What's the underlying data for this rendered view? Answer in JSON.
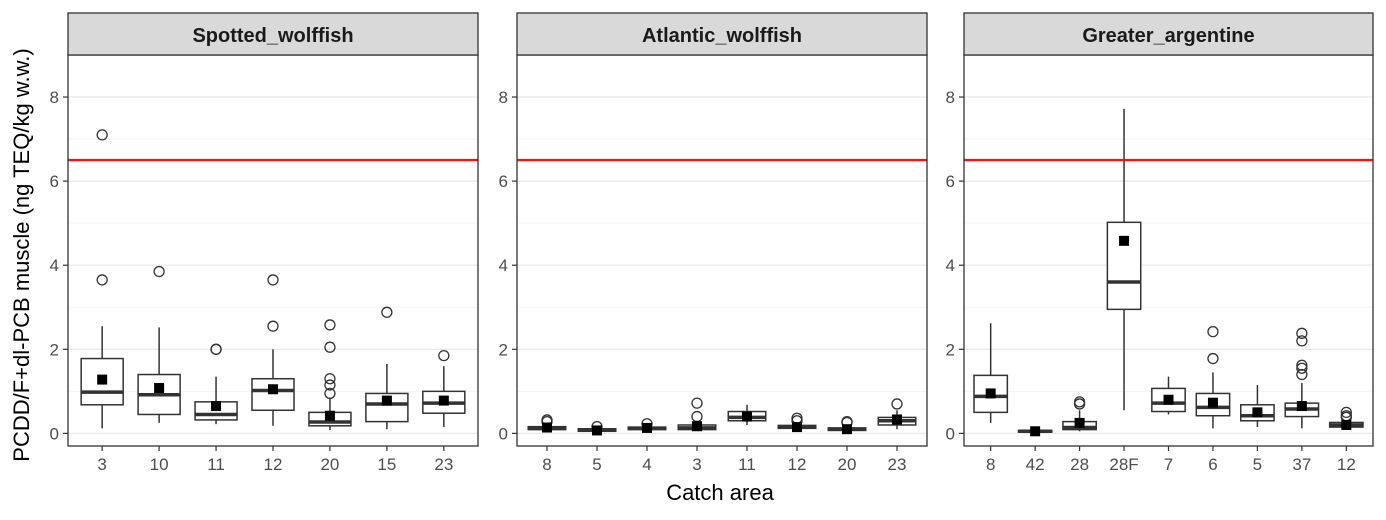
{
  "chart_data": {
    "type": "boxplot",
    "ylabel": "PCDD/F+dl-PCB muscle (ng TEQ/kg w.w.)",
    "xlabel": "Catch area",
    "ylim": [
      -0.3,
      9.0
    ],
    "yticks": [
      0,
      2,
      4,
      6,
      8
    ],
    "reference_line": {
      "y": 6.5,
      "color": "#e31a1c"
    },
    "grid": true,
    "colors": {
      "strip_fill": "#d9d9d9",
      "panel_border": "#333333",
      "grid": "#ebebeb",
      "box": "#333333",
      "mean_marker": "#000000"
    },
    "panels": [
      {
        "title": "Spotted_wolffish",
        "categories": [
          "3",
          "10",
          "11",
          "12",
          "20",
          "15",
          "23"
        ],
        "boxes": [
          {
            "whisker_low": 0.12,
            "q1": 0.68,
            "median": 0.98,
            "q3": 1.78,
            "whisker_high": 2.55,
            "mean": 1.28,
            "outliers": [
              3.65,
              7.1
            ]
          },
          {
            "whisker_low": 0.25,
            "q1": 0.45,
            "median": 0.92,
            "q3": 1.4,
            "whisker_high": 2.52,
            "mean": 1.08,
            "outliers": [
              3.85
            ]
          },
          {
            "whisker_low": 0.22,
            "q1": 0.32,
            "median": 0.45,
            "q3": 0.75,
            "whisker_high": 1.35,
            "mean": 0.65,
            "outliers": [
              2.0,
              2.0
            ]
          },
          {
            "whisker_low": 0.18,
            "q1": 0.55,
            "median": 1.02,
            "q3": 1.3,
            "whisker_high": 2.0,
            "mean": 1.05,
            "outliers": [
              2.55,
              3.65
            ]
          },
          {
            "whisker_low": 0.08,
            "q1": 0.18,
            "median": 0.27,
            "q3": 0.5,
            "whisker_high": 0.85,
            "mean": 0.42,
            "outliers": [
              0.95,
              1.15,
              1.3,
              2.05,
              2.58
            ]
          },
          {
            "whisker_low": 0.1,
            "q1": 0.28,
            "median": 0.7,
            "q3": 0.95,
            "whisker_high": 1.65,
            "mean": 0.78,
            "outliers": [
              2.88
            ]
          },
          {
            "whisker_low": 0.15,
            "q1": 0.48,
            "median": 0.72,
            "q3": 1.0,
            "whisker_high": 1.6,
            "mean": 0.78,
            "outliers": [
              1.85
            ]
          }
        ]
      },
      {
        "title": "Atlantic_wolffish",
        "categories": [
          "8",
          "5",
          "4",
          "3",
          "11",
          "12",
          "20",
          "23"
        ],
        "boxes": [
          {
            "whisker_low": 0.06,
            "q1": 0.09,
            "median": 0.12,
            "q3": 0.16,
            "whisker_high": 0.22,
            "mean": 0.14,
            "outliers": [
              0.28,
              0.32
            ]
          },
          {
            "whisker_low": 0.03,
            "q1": 0.05,
            "median": 0.08,
            "q3": 0.11,
            "whisker_high": 0.14,
            "mean": 0.07,
            "outliers": [
              0.16
            ]
          },
          {
            "whisker_low": 0.07,
            "q1": 0.09,
            "median": 0.12,
            "q3": 0.15,
            "whisker_high": 0.18,
            "mean": 0.13,
            "outliers": [
              0.23
            ]
          },
          {
            "whisker_low": 0.06,
            "q1": 0.09,
            "median": 0.13,
            "q3": 0.2,
            "whisker_high": 0.3,
            "mean": 0.17,
            "outliers": [
              0.4,
              0.72
            ]
          },
          {
            "whisker_low": 0.2,
            "q1": 0.3,
            "median": 0.38,
            "q3": 0.52,
            "whisker_high": 0.68,
            "mean": 0.4,
            "outliers": []
          },
          {
            "whisker_low": 0.08,
            "q1": 0.12,
            "median": 0.15,
            "q3": 0.19,
            "whisker_high": 0.25,
            "mean": 0.15,
            "outliers": [
              0.3,
              0.36
            ]
          },
          {
            "whisker_low": 0.04,
            "q1": 0.07,
            "median": 0.1,
            "q3": 0.13,
            "whisker_high": 0.2,
            "mean": 0.1,
            "outliers": [
              0.26,
              0.28
            ]
          },
          {
            "whisker_low": 0.1,
            "q1": 0.2,
            "median": 0.3,
            "q3": 0.38,
            "whisker_high": 0.55,
            "mean": 0.33,
            "outliers": [
              0.7
            ]
          }
        ]
      },
      {
        "title": "Greater_argentine",
        "categories": [
          "8",
          "42",
          "28",
          "28F",
          "7",
          "6",
          "5",
          "37",
          "12"
        ],
        "boxes": [
          {
            "whisker_low": 0.25,
            "q1": 0.5,
            "median": 0.88,
            "q3": 1.38,
            "whisker_high": 2.62,
            "mean": 0.95,
            "outliers": []
          },
          {
            "whisker_low": 0.02,
            "q1": 0.03,
            "median": 0.05,
            "q3": 0.07,
            "whisker_high": 0.1,
            "mean": 0.05,
            "outliers": []
          },
          {
            "whisker_low": 0.05,
            "q1": 0.09,
            "median": 0.14,
            "q3": 0.28,
            "whisker_high": 0.55,
            "mean": 0.25,
            "outliers": [
              0.7,
              0.75
            ]
          },
          {
            "whisker_low": 0.55,
            "q1": 2.95,
            "median": 3.6,
            "q3": 5.02,
            "whisker_high": 7.72,
            "mean": 4.58,
            "outliers": []
          },
          {
            "whisker_low": 0.45,
            "q1": 0.52,
            "median": 0.72,
            "q3": 1.07,
            "whisker_high": 1.35,
            "mean": 0.8,
            "outliers": []
          },
          {
            "whisker_low": 0.12,
            "q1": 0.42,
            "median": 0.62,
            "q3": 0.95,
            "whisker_high": 1.45,
            "mean": 0.73,
            "outliers": [
              1.78,
              2.42
            ]
          },
          {
            "whisker_low": 0.15,
            "q1": 0.3,
            "median": 0.42,
            "q3": 0.68,
            "whisker_high": 1.15,
            "mean": 0.5,
            "outliers": []
          },
          {
            "whisker_low": 0.12,
            "q1": 0.4,
            "median": 0.58,
            "q3": 0.72,
            "whisker_high": 1.2,
            "mean": 0.65,
            "outliers": [
              1.4,
              1.55,
              1.62,
              2.2,
              2.38
            ]
          },
          {
            "whisker_low": 0.12,
            "q1": 0.15,
            "median": 0.2,
            "q3": 0.26,
            "whisker_high": 0.32,
            "mean": 0.2,
            "outliers": [
              0.38,
              0.42,
              0.5
            ]
          }
        ]
      }
    ]
  }
}
